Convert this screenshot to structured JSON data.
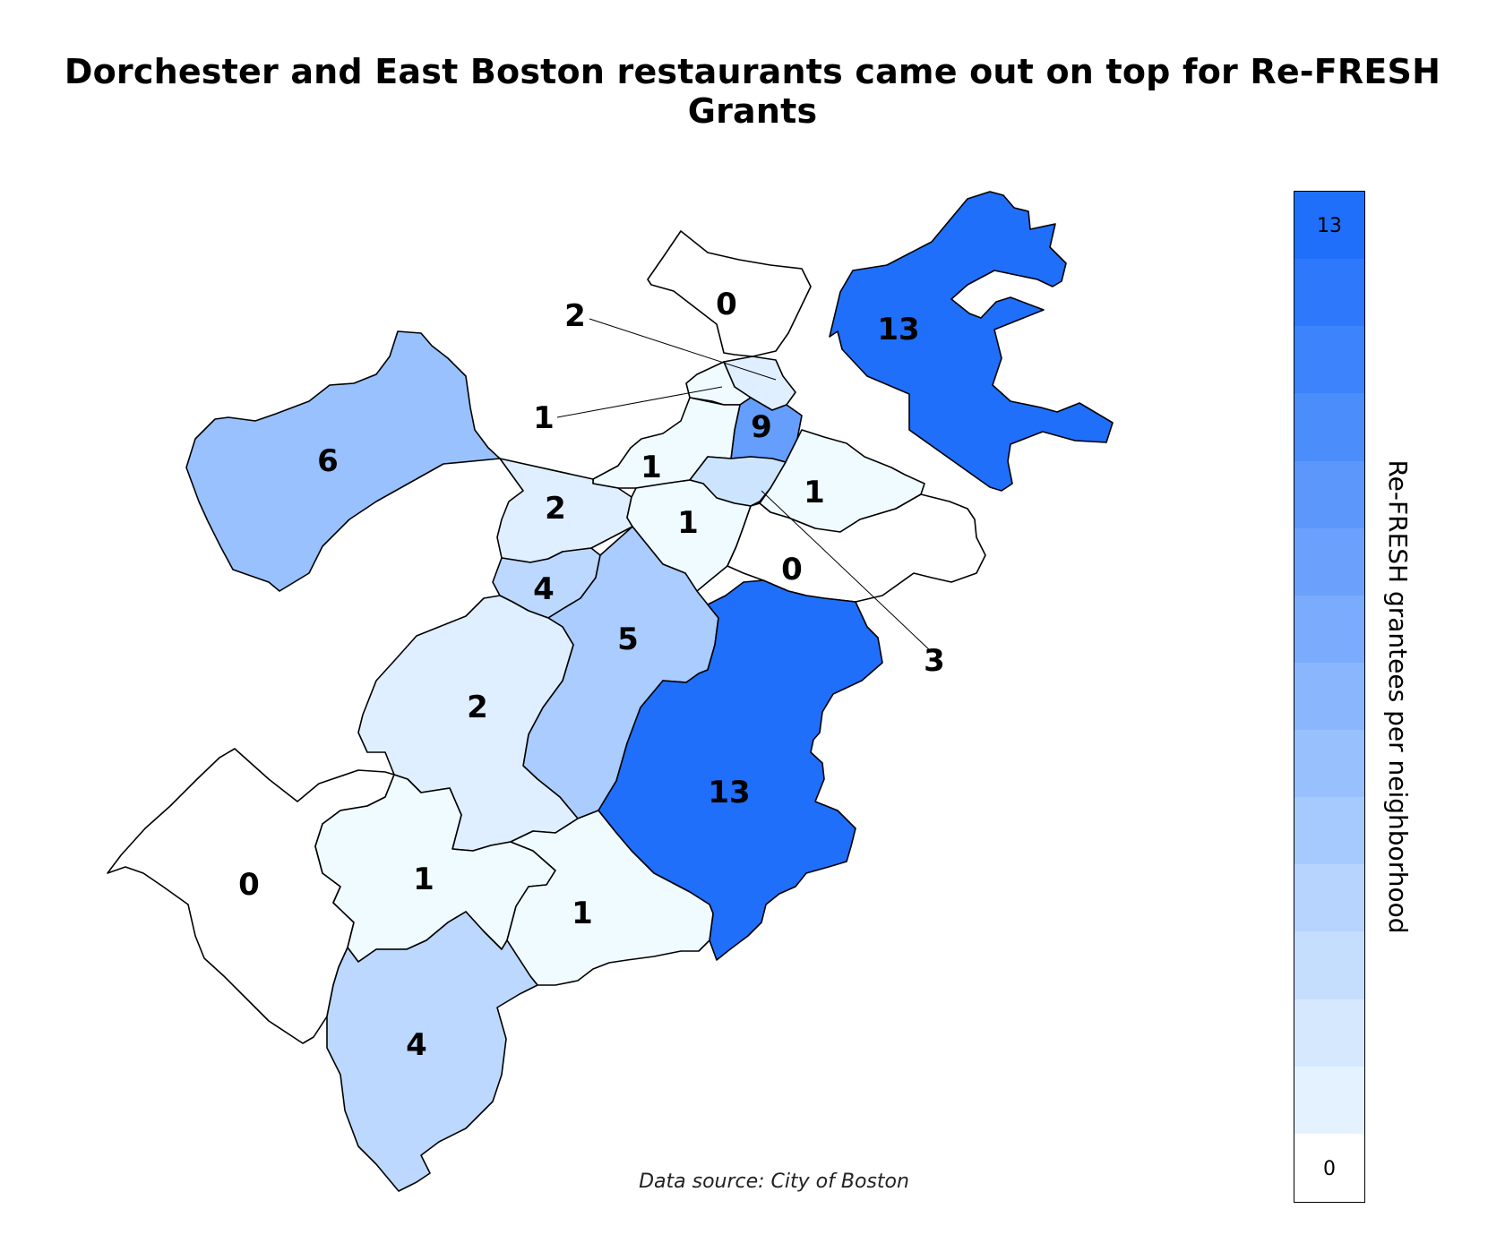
{
  "title": "Dorchester and East Boston restaurants came out on top for Re-FRESH Grants",
  "source": "Data source: City of Boston",
  "legend": {
    "title": "Re-FRESH grantees per neighborhood",
    "min": 0,
    "max": 13,
    "min_label": "0",
    "max_label": "13",
    "bins": 13,
    "color_low": "#f0fbff",
    "color_high": "#1f6ffb"
  },
  "colors": {
    "background": "#ffffff",
    "outline": "#000000"
  },
  "regions": [
    {
      "id": "region-charlestown",
      "value": 0,
      "label": "0"
    },
    {
      "id": "region-east-boston",
      "value": 13,
      "label": "13"
    },
    {
      "id": "region-north-end",
      "value": 2,
      "label": "2"
    },
    {
      "id": "region-west-end",
      "value": 1,
      "label": "1"
    },
    {
      "id": "region-downtown",
      "value": 9,
      "label": "9"
    },
    {
      "id": "region-allston-brighton",
      "value": 6,
      "label": "6"
    },
    {
      "id": "region-back-bay",
      "value": 1,
      "label": "1"
    },
    {
      "id": "region-fenway",
      "value": 2,
      "label": "2"
    },
    {
      "id": "region-south-end",
      "value": 1,
      "label": "1"
    },
    {
      "id": "region-south-boston-waterfront",
      "value": 1,
      "label": "1"
    },
    {
      "id": "region-chinatown",
      "value": 3,
      "label": "3"
    },
    {
      "id": "region-mission-hill",
      "value": 4,
      "label": "4"
    },
    {
      "id": "region-roxbury",
      "value": 5,
      "label": "5"
    },
    {
      "id": "region-south-boston",
      "value": 0,
      "label": "0"
    },
    {
      "id": "region-jamaica-plain",
      "value": 2,
      "label": "2"
    },
    {
      "id": "region-dorchester",
      "value": 13,
      "label": "13"
    },
    {
      "id": "region-west-roxbury",
      "value": 0,
      "label": "0"
    },
    {
      "id": "region-roslindale",
      "value": 1,
      "label": "1"
    },
    {
      "id": "region-mattapan",
      "value": 1,
      "label": "1"
    },
    {
      "id": "region-hyde-park",
      "value": 4,
      "label": "4"
    }
  ]
}
